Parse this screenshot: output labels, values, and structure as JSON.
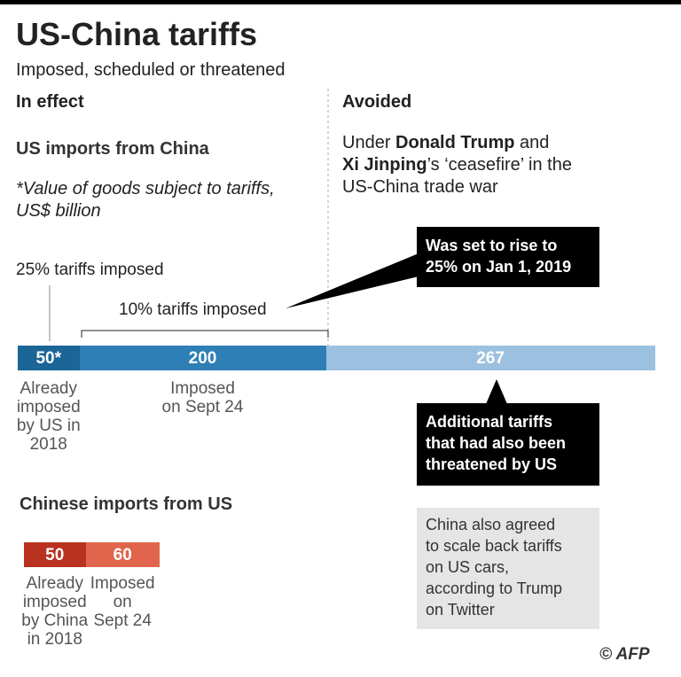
{
  "header": {
    "title": "US-China tariffs",
    "subtitle": "Imposed, scheduled or threatened"
  },
  "sections": [
    "In effect",
    "Avoided"
  ],
  "avoided_note": [
    "Under ",
    "Donald Trump",
    " and\n",
    "Xi Jinping",
    "’s ‘ceasefire’ in the\nUS-China trade war"
  ],
  "credit": "© AFP",
  "chart_data": [
    {
      "type": "bar",
      "stacked": true,
      "title": "US imports from China",
      "subtitle": "*Value of goods subject to tariffs,\nUS$ billion",
      "series": [
        {
          "name": "Already\nimposed\nby US in\n2018",
          "color": "#1b6597",
          "values": [
            50
          ],
          "value_labels": [
            "50*"
          ]
        },
        {
          "name": "Imposed\non Sept 24",
          "color": "#2e7fb6",
          "values": [
            200
          ]
        },
        {
          "name": "Additional tariffs\nthat had also been\nthreatened by US",
          "color": "#9cc0e0",
          "values": [
            267
          ]
        }
      ],
      "annotations": [
        "25% tariffs imposed",
        "10% tariffs imposed",
        "Was set to rise to\n25%  on Jan 1, 2019"
      ]
    },
    {
      "type": "bar",
      "stacked": true,
      "title": "Chinese imports from US",
      "series": [
        {
          "name": "Already\nimposed\nby China\nin 2018",
          "color": "#b8321f",
          "values": [
            50
          ]
        },
        {
          "name": "Imposed\non\nSept 24",
          "color": "#e0654c",
          "values": [
            60
          ]
        }
      ],
      "annotations": [
        "China also agreed\nto scale back tariffs\non US cars,\naccording to Trump\non Twitter"
      ]
    }
  ]
}
